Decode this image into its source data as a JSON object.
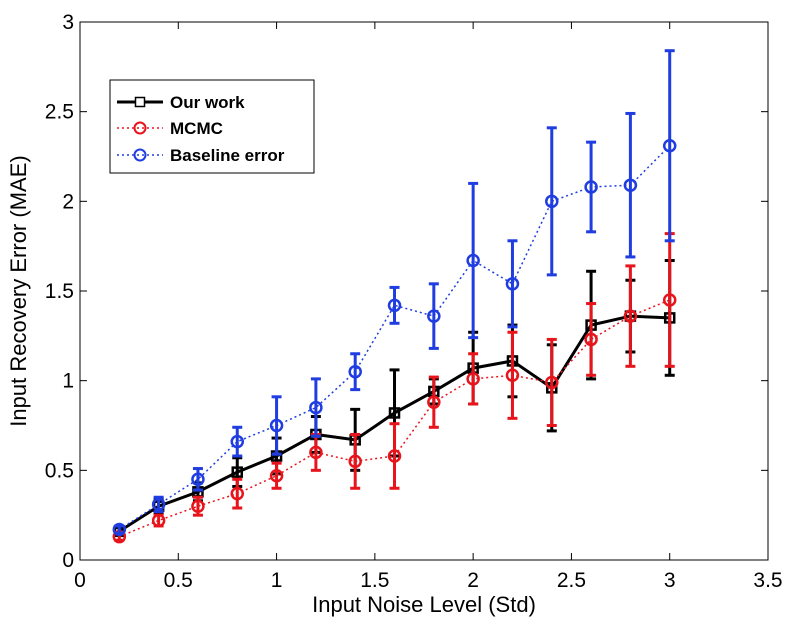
{
  "chart_data": {
    "type": "line",
    "title": "",
    "xlabel": "Input Noise Level (Std)",
    "ylabel": "Input Recovery Error (MAE)",
    "xlim": [
      0,
      3.5
    ],
    "ylim": [
      0,
      3
    ],
    "xticks": [
      "0",
      "0.5",
      "1",
      "1.5",
      "2",
      "2.5",
      "3",
      "3.5"
    ],
    "yticks": [
      "0",
      "0.5",
      "1",
      "1.5",
      "2",
      "2.5",
      "3"
    ],
    "legend_position": "top-left",
    "x": [
      0.2,
      0.4,
      0.6,
      0.8,
      1.0,
      1.2,
      1.4,
      1.6,
      1.8,
      2.0,
      2.2,
      2.4,
      2.6,
      2.8,
      3.0
    ],
    "series": [
      {
        "name": "Our work",
        "color": "#000000",
        "marker": "square",
        "line_style": "solid",
        "values": [
          0.16,
          0.3,
          0.38,
          0.49,
          0.58,
          0.7,
          0.67,
          0.82,
          0.94,
          1.07,
          1.11,
          0.96,
          1.31,
          1.36,
          1.35
        ],
        "error": [
          0.02,
          0.04,
          0.05,
          0.08,
          0.1,
          0.1,
          0.17,
          0.24,
          0.07,
          0.2,
          0.2,
          0.24,
          0.3,
          0.2,
          0.32
        ]
      },
      {
        "name": "MCMC",
        "color": "#e8141c",
        "marker": "circle",
        "line_style": "dotted",
        "values": [
          0.13,
          0.22,
          0.3,
          0.37,
          0.47,
          0.6,
          0.55,
          0.58,
          0.88,
          1.01,
          1.03,
          0.99,
          1.23,
          1.36,
          1.45
        ],
        "error": [
          0.02,
          0.03,
          0.05,
          0.08,
          0.07,
          0.1,
          0.15,
          0.18,
          0.14,
          0.14,
          0.24,
          0.24,
          0.2,
          0.28,
          0.37
        ]
      },
      {
        "name": "Baseline error",
        "color": "#1f3de0",
        "marker": "circle",
        "line_style": "dotted",
        "values": [
          0.17,
          0.31,
          0.45,
          0.66,
          0.75,
          0.85,
          1.05,
          1.42,
          1.36,
          1.67,
          1.54,
          2.0,
          2.08,
          2.09,
          2.31
        ],
        "error": [
          0.02,
          0.04,
          0.06,
          0.08,
          0.16,
          0.16,
          0.1,
          0.1,
          0.18,
          0.43,
          0.24,
          0.41,
          0.25,
          0.4,
          0.53
        ]
      }
    ]
  }
}
